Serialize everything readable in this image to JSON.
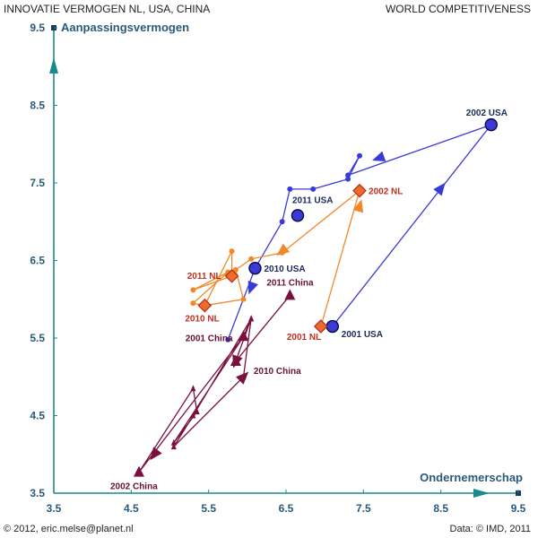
{
  "header": {
    "title_left": "INNOVATIE VERMOGEN NL, USA, CHINA",
    "title_right": "WORLD COMPETITIVENESS"
  },
  "footer": {
    "copyright": "© 2012, eric.melse@planet.nl",
    "source": "Data: © IMD, 2011"
  },
  "chart_data": {
    "type": "scatter",
    "title": "",
    "xlabel": "Ondernemerschap",
    "ylabel": "Aanpassingsvermogen",
    "xlim": [
      3.5,
      9.5
    ],
    "ylim": [
      3.5,
      9.5
    ],
    "xticks": [
      "3.5",
      "4.5",
      "5.5",
      "6.5",
      "7.5",
      "8.5",
      "9.5"
    ],
    "yticks": [
      "3.5",
      "4.5",
      "5.5",
      "6.5",
      "7.5",
      "8.5",
      "9.5"
    ],
    "grid": false,
    "colors": {
      "USA": "#3a3ad6",
      "NL": "#f0882a",
      "China": "#7a1040",
      "axis": "#1a8a8a"
    },
    "series": [
      {
        "name": "USA",
        "path": [
          [
            7.1,
            5.65
          ],
          [
            9.15,
            8.25
          ],
          [
            7.3,
            7.6
          ],
          [
            7.45,
            7.85
          ],
          [
            7.3,
            7.55
          ],
          [
            6.85,
            7.42
          ],
          [
            6.55,
            7.42
          ],
          [
            6.45,
            7.0
          ],
          [
            6.1,
            6.4
          ],
          [
            5.75,
            5.48
          ]
        ],
        "arrows": [
          [
            8.5,
            7.43
          ],
          [
            7.7,
            7.82
          ],
          [
            6.05,
            6.15
          ]
        ],
        "labeled": [
          {
            "x": 7.1,
            "y": 5.65,
            "label": "2001 USA"
          },
          {
            "x": 9.15,
            "y": 8.25,
            "label": "2002 USA"
          },
          {
            "x": 6.1,
            "y": 6.4,
            "label": "2010 USA"
          },
          {
            "x": 6.65,
            "y": 7.08,
            "label": "2011 USA"
          }
        ]
      },
      {
        "name": "NL",
        "path": [
          [
            6.95,
            5.65
          ],
          [
            7.45,
            7.4
          ],
          [
            6.45,
            6.6
          ],
          [
            6.05,
            6.52
          ],
          [
            5.85,
            6.38
          ],
          [
            5.95,
            6.0
          ],
          [
            5.45,
            5.92
          ],
          [
            5.3,
            5.95
          ],
          [
            5.75,
            6.35
          ],
          [
            5.3,
            6.12
          ],
          [
            5.8,
            6.3
          ],
          [
            5.8,
            6.62
          ],
          [
            5.45,
            5.92
          ]
        ],
        "arrows": [
          [
            7.45,
            7.2
          ],
          [
            6.45,
            6.62
          ]
        ],
        "labeled": [
          {
            "x": 6.95,
            "y": 5.65,
            "label": "2001 NL"
          },
          {
            "x": 7.45,
            "y": 7.4,
            "label": "2002 NL"
          },
          {
            "x": 5.45,
            "y": 5.92,
            "label": "2010 NL"
          },
          {
            "x": 5.8,
            "y": 6.3,
            "label": "2011 NL"
          }
        ]
      },
      {
        "name": "China",
        "path": [
          [
            5.95,
            5.52
          ],
          [
            4.6,
            3.77
          ],
          [
            5.3,
            4.85
          ],
          [
            5.35,
            4.55
          ],
          [
            5.05,
            4.15
          ],
          [
            5.95,
            5.52
          ],
          [
            6.05,
            5.75
          ],
          [
            5.3,
            4.5
          ],
          [
            5.05,
            4.1
          ],
          [
            5.95,
            5.0
          ],
          [
            6.05,
            5.75
          ],
          [
            5.85,
            5.2
          ],
          [
            6.55,
            6.05
          ]
        ],
        "arrows": [
          [
            4.8,
            4.0
          ],
          [
            5.85,
            5.2
          ],
          [
            5.95,
            5.0
          ]
        ],
        "labeled": [
          {
            "x": 5.95,
            "y": 5.52,
            "label": "2001 China"
          },
          {
            "x": 4.6,
            "y": 3.77,
            "label": "2002 China"
          },
          {
            "x": 5.85,
            "y": 5.2,
            "label": "2010 China"
          },
          {
            "x": 6.55,
            "y": 6.05,
            "label": "2011 China"
          }
        ]
      }
    ]
  }
}
